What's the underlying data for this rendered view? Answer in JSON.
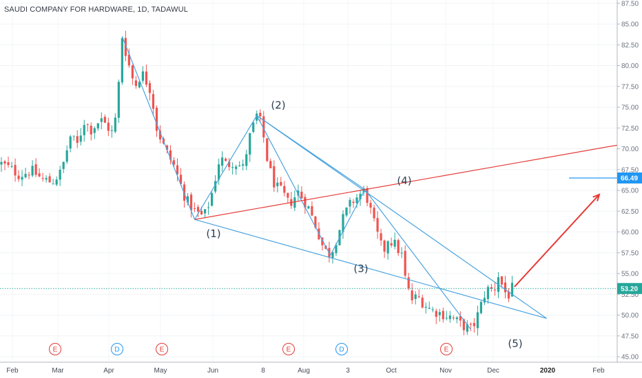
{
  "header": {
    "title": "SAUDI COMPANY FOR HARDWARE, 1D, TADAWUL"
  },
  "chart_data": {
    "type": "candlestick",
    "y_ticks": [
      "45.00",
      "47.50",
      "50.00",
      "52.50",
      "55.00",
      "57.50",
      "60.00",
      "62.50",
      "65.00",
      "67.50",
      "70.00",
      "72.50",
      "75.00",
      "77.50",
      "80.00",
      "82.50",
      "85.00",
      "87.50"
    ],
    "ylim": [
      45.0,
      87.5
    ],
    "x_ticks": [
      {
        "label": "Feb",
        "bold": false
      },
      {
        "label": "Mar",
        "bold": false
      },
      {
        "label": "Apr",
        "bold": false
      },
      {
        "label": "May",
        "bold": false
      },
      {
        "label": "Jun",
        "bold": false
      },
      {
        "label": "8",
        "bold": false
      },
      {
        "label": "Aug",
        "bold": false
      },
      {
        "label": "3",
        "bold": false
      },
      {
        "label": "Oct",
        "bold": false
      },
      {
        "label": "Nov",
        "bold": false
      },
      {
        "label": "Dec",
        "bold": false
      },
      {
        "label": "2020",
        "bold": true
      },
      {
        "label": "Feb",
        "bold": false
      }
    ],
    "current_price": {
      "label": "53.20",
      "value": 53.2,
      "color": "#26a69a"
    },
    "target_price": {
      "label": "66.49",
      "value": 66.49,
      "color": "#2196f3"
    },
    "wave_labels": [
      "(1)",
      "(2)",
      "(3)",
      "(4)",
      "(5)"
    ],
    "events": [
      {
        "type": "E",
        "color": "#e53935"
      },
      {
        "type": "D",
        "color": "#2196f3"
      },
      {
        "type": "E",
        "color": "#e53935"
      },
      {
        "type": "E",
        "color": "#e53935"
      },
      {
        "type": "D",
        "color": "#2196f3"
      },
      {
        "type": "E",
        "color": "#e53935"
      }
    ],
    "colors": {
      "up": "#26a69a",
      "down": "#ef5350",
      "wave_line": "#4aa3df",
      "trend_line": "#e53935",
      "arrow": "#e53935"
    },
    "waypoints": [
      [
        0,
        68.2
      ],
      [
        8,
        67.6
      ],
      [
        16,
        66.8
      ],
      [
        26,
        67.4
      ],
      [
        36,
        66.3
      ],
      [
        44,
        66.0
      ],
      [
        52,
        67.2
      ],
      [
        60,
        71.5
      ],
      [
        66,
        70.5
      ],
      [
        72,
        73.3
      ],
      [
        78,
        72.3
      ],
      [
        86,
        73.5
      ],
      [
        90,
        73.0
      ],
      [
        96,
        72.0
      ],
      [
        100,
        74.0
      ],
      [
        105,
        83.5
      ],
      [
        110,
        80.5
      ],
      [
        116,
        77.5
      ],
      [
        122,
        79.2
      ],
      [
        130,
        77.0
      ],
      [
        135,
        72.5
      ],
      [
        142,
        70.0
      ],
      [
        150,
        68.0
      ],
      [
        160,
        64.0
      ],
      [
        168,
        62.5
      ],
      [
        176,
        61.8
      ],
      [
        182,
        64.0
      ],
      [
        190,
        69.0
      ],
      [
        196,
        68.0
      ],
      [
        202,
        68.5
      ],
      [
        210,
        67.7
      ],
      [
        216,
        71.5
      ],
      [
        222,
        74.0
      ],
      [
        226,
        73.0
      ],
      [
        232,
        68.0
      ],
      [
        238,
        65.5
      ],
      [
        244,
        64.8
      ],
      [
        250,
        63.3
      ],
      [
        258,
        64.8
      ],
      [
        266,
        63.2
      ],
      [
        274,
        60.5
      ],
      [
        280,
        58.0
      ],
      [
        286,
        57.2
      ],
      [
        292,
        59.5
      ],
      [
        298,
        62.0
      ],
      [
        304,
        63.5
      ],
      [
        310,
        64.3
      ],
      [
        316,
        65.0
      ],
      [
        320,
        63.0
      ],
      [
        326,
        60.0
      ],
      [
        332,
        57.5
      ],
      [
        336,
        59.2
      ],
      [
        342,
        58.5
      ],
      [
        348,
        57.2
      ],
      [
        350,
        55.0
      ],
      [
        356,
        51.8
      ],
      [
        362,
        52.2
      ],
      [
        368,
        51.3
      ],
      [
        374,
        50.6
      ],
      [
        380,
        50.3
      ],
      [
        386,
        50.0
      ],
      [
        392,
        49.7
      ],
      [
        398,
        49.0
      ],
      [
        403,
        48.6
      ],
      [
        408,
        48.3
      ],
      [
        412,
        49.2
      ],
      [
        416,
        50.8
      ],
      [
        420,
        52.5
      ],
      [
        424,
        53.3
      ],
      [
        428,
        52.8
      ],
      [
        432,
        54.8
      ],
      [
        436,
        53.3
      ],
      [
        440,
        52.2
      ],
      [
        444,
        53.2
      ]
    ],
    "wave_points": [
      {
        "d": 105,
        "v": 83.5
      },
      {
        "d": 168,
        "v": 61.5
      },
      {
        "d": 222,
        "v": 74.0
      },
      {
        "d": 286,
        "v": 57.2
      },
      {
        "d": 316,
        "v": 65.1
      },
      {
        "d": 408,
        "v": 48.3
      },
      {
        "d": 444,
        "v": 52.3
      },
      {
        "d": 474,
        "v": 49.6
      }
    ]
  }
}
